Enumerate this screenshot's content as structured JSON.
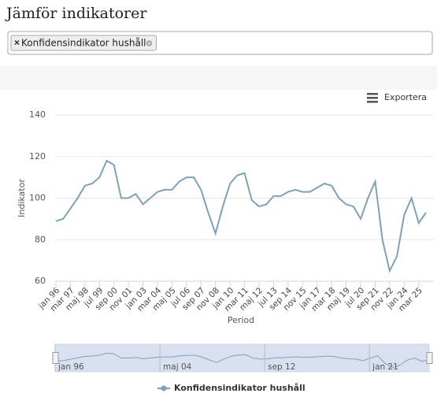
{
  "header": {
    "title": "Jämför indikatorer"
  },
  "selector": {
    "tags": [
      "Konfidensindikator hushåll"
    ]
  },
  "export_button": "Exportera",
  "chart_data": {
    "type": "line",
    "x_label": "Period",
    "y_label": "Indikator",
    "categories": [
      "jan 96",
      null,
      "mar 97",
      null,
      "maj 98",
      null,
      "jul 99",
      null,
      "sep 00",
      null,
      "nov 01",
      null,
      "jan 03",
      null,
      "mar 04",
      null,
      "maj 05",
      null,
      "jul 06",
      null,
      "sep 07",
      null,
      "nov 08",
      null,
      "jan 10",
      null,
      "mar 11",
      null,
      "maj 12",
      null,
      "jul 13",
      null,
      "sep 14",
      null,
      "nov 15",
      null,
      "jan 17",
      null,
      "mar 18",
      null,
      "maj 19",
      null,
      "jul 20",
      null,
      "sep 21",
      null,
      "nov 22",
      null,
      "jan 24",
      null,
      "mar 25",
      null
    ],
    "series": [
      {
        "name": "Konfidensindikator hushåll",
        "color": "#7ca3b5",
        "values": [
          89,
          90,
          95,
          100,
          106,
          107,
          110,
          118,
          116,
          100,
          100,
          102,
          97,
          100,
          103,
          104,
          104,
          108,
          110,
          110,
          104,
          93,
          83,
          96,
          107,
          111,
          112,
          99,
          96,
          97,
          101,
          101,
          103,
          104,
          103,
          103,
          105,
          107,
          106,
          100,
          97,
          96,
          90,
          100,
          108,
          80,
          65,
          72,
          92,
          100,
          88,
          93
        ]
      }
    ],
    "ylim": [
      60,
      140
    ],
    "yticks": [
      60,
      80,
      100,
      120,
      140
    ],
    "grid": true,
    "navigator_labels": [
      "jan 96",
      "maj 04",
      "sep 12",
      "jan 21"
    ]
  }
}
